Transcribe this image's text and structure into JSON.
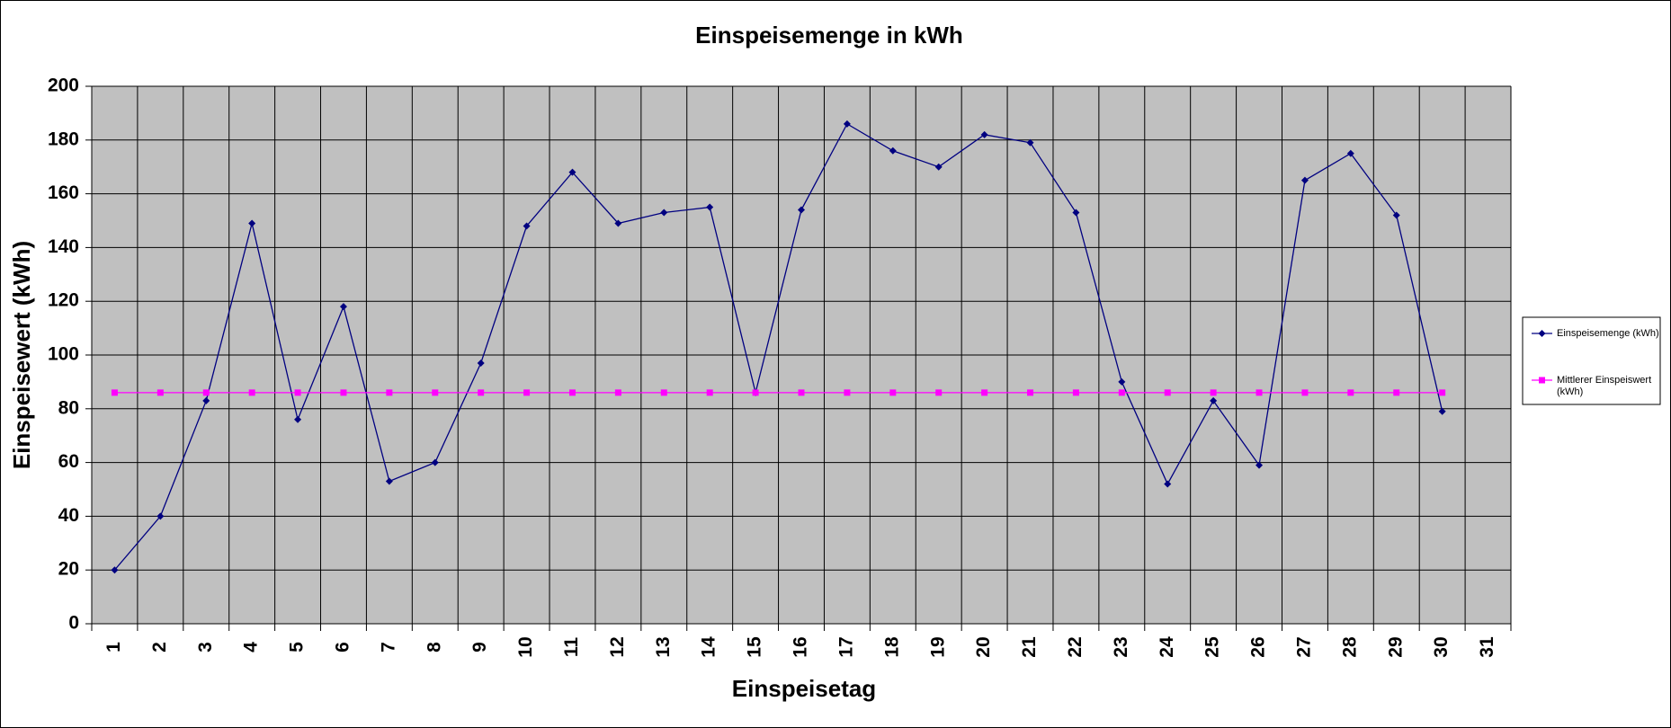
{
  "chart_data": {
    "type": "line",
    "title": "Einspeisemenge in kWh",
    "x_label": "Einspeisetag",
    "y_label": "Einspeisewert  (kWh)",
    "categories": [
      "1",
      "2",
      "3",
      "4",
      "5",
      "6",
      "7",
      "8",
      "9",
      "10",
      "11",
      "12",
      "13",
      "14",
      "15",
      "16",
      "17",
      "18",
      "19",
      "20",
      "21",
      "22",
      "23",
      "24",
      "25",
      "26",
      "27",
      "28",
      "29",
      "30",
      "31"
    ],
    "series": [
      {
        "name": "Einspeisemenge (kWh)",
        "color": "#000080",
        "marker": "diamond",
        "values": [
          20,
          40,
          83,
          149,
          76,
          118,
          53,
          60,
          97,
          148,
          168,
          149,
          153,
          155,
          86,
          154,
          186,
          176,
          170,
          182,
          179,
          153,
          90,
          52,
          83,
          59,
          165,
          175,
          152,
          79,
          null
        ]
      },
      {
        "name": "Mittlerer Einspeiswert (kWh)",
        "color": "#ff00ff",
        "marker": "square",
        "values": [
          86,
          86,
          86,
          86,
          86,
          86,
          86,
          86,
          86,
          86,
          86,
          86,
          86,
          86,
          86,
          86,
          86,
          86,
          86,
          86,
          86,
          86,
          86,
          86,
          86,
          86,
          86,
          86,
          86,
          86,
          null
        ]
      }
    ],
    "ylim": [
      0,
      200
    ],
    "yticks": [
      0,
      20,
      40,
      60,
      80,
      100,
      120,
      140,
      160,
      180,
      200
    ],
    "grid": true,
    "legend": "right"
  }
}
